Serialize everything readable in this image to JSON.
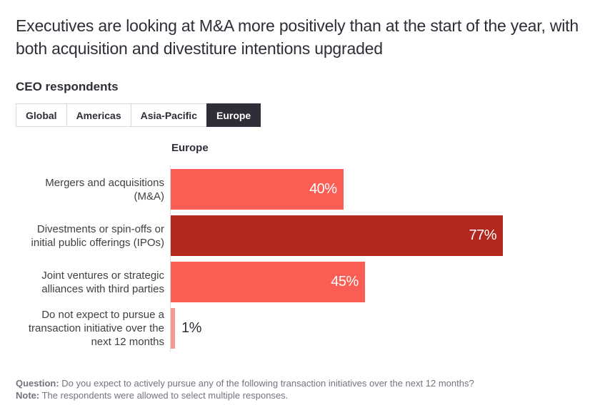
{
  "page": {
    "title": "Executives are looking at M&A more positively than at the start of the year, with both acquisition and divestiture intentions upgraded",
    "subtitle": "CEO respondents"
  },
  "tabs": [
    {
      "id": "global",
      "label": "Global",
      "selected": false
    },
    {
      "id": "americas",
      "label": "Americas",
      "selected": false
    },
    {
      "id": "asia-pacific",
      "label": "Asia-Pacific",
      "selected": false
    },
    {
      "id": "europe",
      "label": "Europe",
      "selected": true
    }
  ],
  "chart_data": {
    "type": "bar",
    "orientation": "horizontal",
    "column_header": "Europe",
    "categories": [
      "Mergers and acquisitions (M&A)",
      "Divestments or spin-offs or initial public offerings (IPOs)",
      "Joint ventures or strategic alliances with third parties",
      "Do not expect to pursue a transaction initiative over the next 12 months"
    ],
    "values": [
      40,
      77,
      45,
      1
    ],
    "value_labels": [
      "40%",
      "77%",
      "45%",
      "1%"
    ],
    "bar_colors": [
      "#f95d54",
      "#b2271e",
      "#f95d54",
      "#f89a90"
    ],
    "value_label_inside": [
      true,
      true,
      true,
      false
    ],
    "xlim": [
      0,
      100
    ],
    "grid": false,
    "legend": false
  },
  "footer": {
    "question_label": "Question:",
    "question_text": "Do you expect to actively pursue any of the following transaction initiatives over the next 12 months?",
    "note_label": "Note:",
    "note_text": "The respondents were allowed to select multiple responses."
  },
  "colors": {
    "accent_red": "#f95d54",
    "dark_red": "#b2271e",
    "light_pink": "#f89a90",
    "text_dark": "#2e2e38",
    "text_gray": "#747480",
    "tab_selected_bg": "#2e2e38",
    "axis_line": "#dcdcdc"
  }
}
